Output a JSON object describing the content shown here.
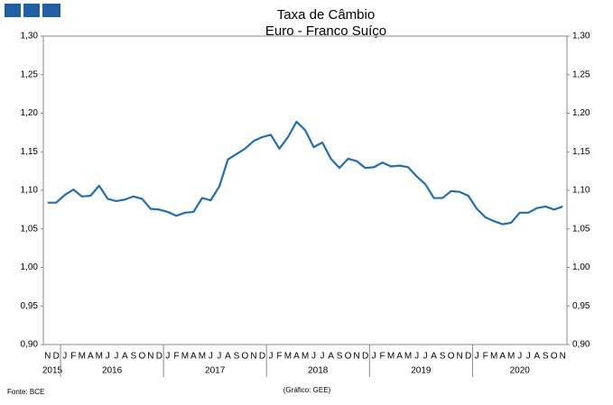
{
  "chart_data": {
    "type": "line",
    "title": "Taxa de Câmbio",
    "subtitle": "Euro - Franco Suíço",
    "source": "Fonte: BCE",
    "credit": "(Gráfico: GEE)",
    "categories": [
      "N",
      "D",
      "J",
      "F",
      "M",
      "A",
      "M",
      "J",
      "J",
      "A",
      "S",
      "O",
      "N",
      "D",
      "J",
      "F",
      "M",
      "A",
      "M",
      "J",
      "J",
      "A",
      "S",
      "O",
      "N",
      "D",
      "J",
      "F",
      "M",
      "A",
      "M",
      "J",
      "J",
      "A",
      "S",
      "O",
      "N",
      "D",
      "J",
      "F",
      "M",
      "A",
      "M",
      "J",
      "J",
      "A",
      "S",
      "O",
      "N",
      "D",
      "J",
      "F",
      "M",
      "A",
      "M",
      "J",
      "J",
      "A",
      "S",
      "O",
      "N"
    ],
    "years": [
      "2015",
      "2016",
      "2017",
      "2018",
      "2019",
      "2020"
    ],
    "series": [
      {
        "color": "#1f6fb5",
        "values": [
          1.084,
          1.084,
          1.094,
          1.101,
          1.092,
          1.093,
          1.106,
          1.089,
          1.086,
          1.088,
          1.092,
          1.089,
          1.076,
          1.075,
          1.072,
          1.067,
          1.071,
          1.072,
          1.09,
          1.087,
          1.105,
          1.14,
          1.147,
          1.154,
          1.164,
          1.169,
          1.172,
          1.154,
          1.169,
          1.189,
          1.178,
          1.156,
          1.162,
          1.141,
          1.129,
          1.141,
          1.138,
          1.129,
          1.13,
          1.136,
          1.131,
          1.132,
          1.13,
          1.118,
          1.108,
          1.09,
          1.09,
          1.099,
          1.098,
          1.093,
          1.076,
          1.065,
          1.06,
          1.056,
          1.058,
          1.071,
          1.071,
          1.077,
          1.079,
          1.075,
          1.079
        ]
      }
    ],
    "ylim": [
      0.9,
      1.3
    ],
    "yticks": [
      {
        "value": 0.9,
        "label": "0,90"
      },
      {
        "value": 0.95,
        "label": "0,95"
      },
      {
        "value": 1.0,
        "label": "1,00"
      },
      {
        "value": 1.05,
        "label": "1,05"
      },
      {
        "value": 1.1,
        "label": "1,10"
      },
      {
        "value": 1.15,
        "label": "1,15"
      },
      {
        "value": 1.2,
        "label": "1,20"
      },
      {
        "value": 1.25,
        "label": "1,25"
      },
      {
        "value": 1.3,
        "label": "1,30"
      }
    ]
  }
}
